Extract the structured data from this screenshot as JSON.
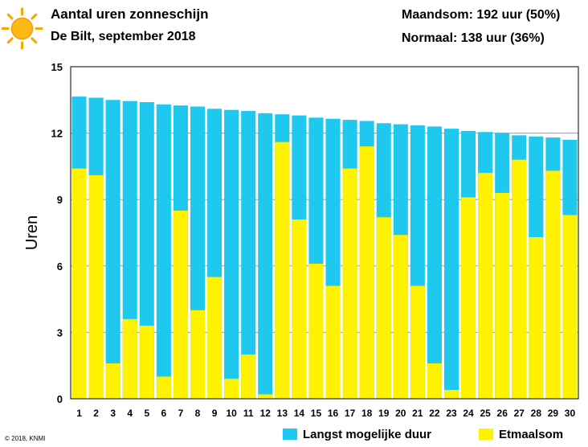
{
  "header": {
    "title": "Aantal uren zonneschijn",
    "subtitle": "De Bilt, september 2018",
    "monthly_total": "Maandsom: 192 uur (50%)",
    "normal": "Normaal: 138 uur (36%)"
  },
  "footer": {
    "copyright": "© 2018, KNMI"
  },
  "icons": {
    "sun": "sun-icon"
  },
  "colors": {
    "max_duration": "#1EC8EE",
    "daily_total": "#FFF200",
    "grid": "#999999"
  },
  "chart_data": {
    "type": "bar",
    "ylabel": "Uren",
    "xlabel": "",
    "ylim": [
      0,
      15
    ],
    "yticks": [
      0,
      3,
      6,
      9,
      12,
      15
    ],
    "categories": [
      "1",
      "2",
      "3",
      "4",
      "5",
      "6",
      "7",
      "8",
      "9",
      "10",
      "11",
      "12",
      "13",
      "14",
      "15",
      "16",
      "17",
      "18",
      "19",
      "20",
      "21",
      "22",
      "23",
      "24",
      "25",
      "26",
      "27",
      "28",
      "29",
      "30"
    ],
    "series": [
      {
        "name": "Langst mogelijke duur",
        "values": [
          13.65,
          13.6,
          13.5,
          13.45,
          13.4,
          13.3,
          13.25,
          13.2,
          13.1,
          13.05,
          13.0,
          12.9,
          12.85,
          12.8,
          12.7,
          12.65,
          12.6,
          12.55,
          12.45,
          12.4,
          12.35,
          12.3,
          12.2,
          12.1,
          12.05,
          12.0,
          11.9,
          11.85,
          11.8,
          11.7
        ]
      },
      {
        "name": "Etmaalsom",
        "values": [
          10.4,
          10.1,
          1.6,
          3.6,
          3.3,
          1.0,
          8.5,
          4.0,
          5.5,
          0.9,
          2.0,
          0.2,
          11.6,
          8.1,
          6.1,
          5.1,
          10.4,
          11.4,
          8.2,
          7.4,
          5.1,
          1.6,
          0.4,
          9.1,
          10.2,
          9.3,
          10.8,
          7.3,
          10.3,
          8.3
        ]
      }
    ],
    "legend": "bottom",
    "grid": true
  }
}
